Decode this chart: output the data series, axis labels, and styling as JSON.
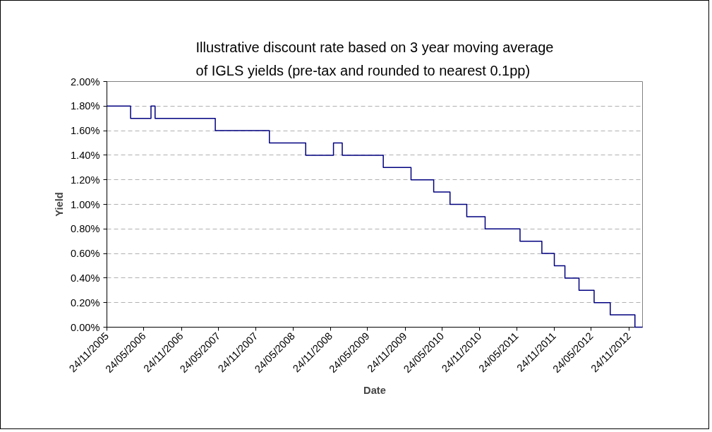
{
  "chart_data": {
    "type": "step",
    "title": "Illustrative discount rate based on 3 year moving average of IGLS yields (pre-tax and rounded to nearest 0.1pp)",
    "xlabel": "Date",
    "ylabel": "Yield",
    "x": [
      "2005-11-24",
      "2006-03-20",
      "2006-06-28",
      "2006-07-18",
      "2007-05-09",
      "2008-01-29",
      "2008-07-25",
      "2008-12-08",
      "2009-01-20",
      "2009-08-09",
      "2009-12-23",
      "2010-04-13",
      "2010-07-02",
      "2010-09-22",
      "2010-12-21",
      "2011-06-10",
      "2011-09-25",
      "2011-11-25",
      "2012-01-16",
      "2012-03-25",
      "2012-06-07",
      "2012-08-25",
      "2012-12-24",
      "2013-01-30"
    ],
    "series": [
      {
        "color": "#000080",
        "values": [
          1.8,
          1.7,
          1.8,
          1.7,
          1.6,
          1.5,
          1.4,
          1.5,
          1.4,
          1.3,
          1.2,
          1.1,
          1.0,
          0.9,
          0.8,
          0.7,
          0.6,
          0.5,
          0.4,
          0.3,
          0.2,
          0.1,
          0.0,
          0.0
        ]
      }
    ],
    "xlim": [
      "2005-11-24",
      "2013-01-30"
    ],
    "xticks": [
      {
        "value": "2005-11-24",
        "label": "24/11/2005"
      },
      {
        "value": "2006-05-24",
        "label": "24/05/2006"
      },
      {
        "value": "2006-11-24",
        "label": "24/11/2006"
      },
      {
        "value": "2007-05-24",
        "label": "24/05/2007"
      },
      {
        "value": "2007-11-24",
        "label": "24/11/2007"
      },
      {
        "value": "2008-05-24",
        "label": "24/05/2008"
      },
      {
        "value": "2008-11-24",
        "label": "24/11/2008"
      },
      {
        "value": "2009-05-24",
        "label": "24/05/2009"
      },
      {
        "value": "2009-11-24",
        "label": "24/11/2009"
      },
      {
        "value": "2010-05-24",
        "label": "24/05/2010"
      },
      {
        "value": "2010-11-24",
        "label": "24/11/2010"
      },
      {
        "value": "2011-05-24",
        "label": "24/05/2011"
      },
      {
        "value": "2011-11-24",
        "label": "24/11/2011"
      },
      {
        "value": "2012-05-24",
        "label": "24/05/2012"
      },
      {
        "value": "2012-11-24",
        "label": "24/11/2012"
      }
    ],
    "ylim": [
      0,
      2
    ],
    "yticks": [
      {
        "value": 0,
        "label": "0.00%"
      },
      {
        "value": 0.2,
        "label": "0.20%"
      },
      {
        "value": 0.4,
        "label": "0.40%"
      },
      {
        "value": 0.6,
        "label": "0.60%"
      },
      {
        "value": 0.8,
        "label": "0.80%"
      },
      {
        "value": 1.0,
        "label": "1.00%"
      },
      {
        "value": 1.2,
        "label": "1.20%"
      },
      {
        "value": 1.4,
        "label": "1.40%"
      },
      {
        "value": 1.6,
        "label": "1.60%"
      },
      {
        "value": 1.8,
        "label": "1.80%"
      },
      {
        "value": 2.0,
        "label": "2.00%"
      }
    ],
    "grid": "y",
    "line_style": "solid",
    "marker": "none"
  }
}
